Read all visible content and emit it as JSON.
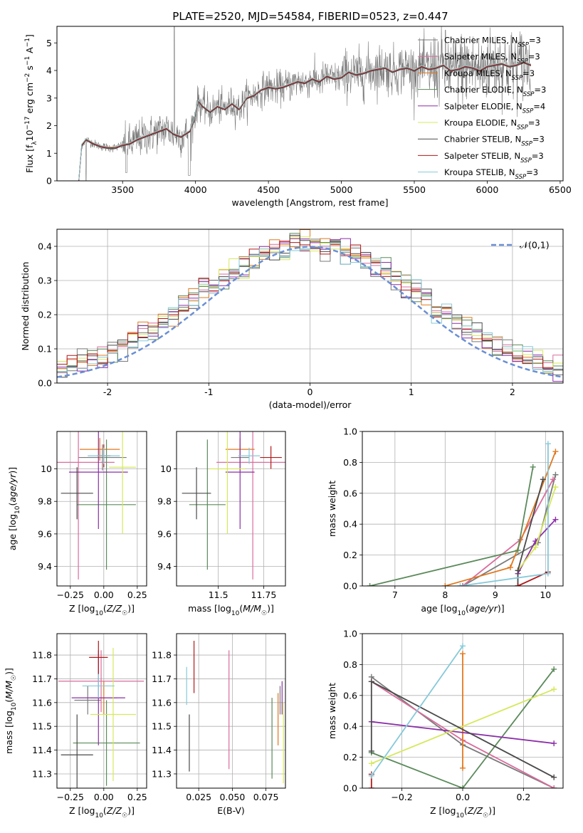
{
  "figure_title": "PLATE=2520, MJD=54584, FIBERID=0523, z=0.447",
  "series_colors": [
    "#7a7a7a",
    "#d96c9c",
    "#e0781e",
    "#5b8a5b",
    "#8b2fa8",
    "#d6e85c",
    "#4a4a4a",
    "#b01919",
    "#86c9d9"
  ],
  "chart_data": [
    {
      "id": "spectrum",
      "type": "line",
      "title": "PLATE=2520, MJD=54584, FIBERID=0523, z=0.447",
      "xlabel": "wavelength [Angstrom, rest frame]",
      "ylabel": "Flux [f_λ 10^-17 erg cm^-2 s^-1 A^-1]",
      "xlim": [
        3050,
        6520
      ],
      "ylim": [
        0,
        5.6
      ],
      "xticks": [
        3500,
        4000,
        4500,
        5000,
        5500,
        6000,
        6500
      ],
      "yticks": [
        0,
        1,
        2,
        3,
        4,
        5
      ],
      "grid": false,
      "legend_position": "top-right",
      "legend": [
        "Chabrier MILES, N_SSP=3",
        "Salpeter MILES, N_SSP=3",
        "Kroupa MILES, N_SSP=3",
        "Chabrier ELODIE, N_SSP=3",
        "Salpeter ELODIE, N_SSP=4",
        "Kroupa ELODIE, N_SSP=3",
        "Chabrier STELIB, N_SSP=3",
        "Salpeter STELIB, N_SSP=3",
        "Kroupa STELIB, N_SSP=3"
      ],
      "model_continuum": {
        "x": [
          3200,
          3220,
          3250,
          3300,
          3350,
          3400,
          3450,
          3500,
          3550,
          3600,
          3650,
          3700,
          3750,
          3800,
          3850,
          3900,
          3930,
          3960,
          3990,
          4000,
          4020,
          4050,
          4100,
          4150,
          4200,
          4250,
          4300,
          4350,
          4400,
          4450,
          4500,
          4550,
          4600,
          4650,
          4700,
          4750,
          4800,
          4850,
          4900,
          4950,
          5000,
          5050,
          5100,
          5150,
          5200,
          5250,
          5300,
          5350,
          5400,
          5450,
          5500,
          5550,
          5600,
          5650,
          5700,
          5750,
          5800,
          5850,
          5900,
          5950,
          6000,
          6050,
          6100,
          6150,
          6200,
          6250,
          6300
        ],
        "y": [
          0,
          1.3,
          1.5,
          1.35,
          1.25,
          1.2,
          1.2,
          1.3,
          1.35,
          1.5,
          1.6,
          1.7,
          1.8,
          1.9,
          1.7,
          1.6,
          1.7,
          1.8,
          2.2,
          2.5,
          2.9,
          2.7,
          2.5,
          2.7,
          2.6,
          2.8,
          2.6,
          3.0,
          3.1,
          3.3,
          3.4,
          3.35,
          3.4,
          3.5,
          3.6,
          3.55,
          3.7,
          3.6,
          3.8,
          3.7,
          3.75,
          3.95,
          3.85,
          3.9,
          4.0,
          4.05,
          4.1,
          3.95,
          4.05,
          4.1,
          4.0,
          4.15,
          4.05,
          4.1,
          4.2,
          4.0,
          4.05,
          4.15,
          4.1,
          4.0,
          4.15,
          4.2,
          4.25,
          4.15,
          4.2,
          4.3,
          4.2
        ]
      }
    },
    {
      "id": "residuals",
      "type": "step",
      "xlabel": "(data-model)/error",
      "ylabel": "Normed distribution",
      "xlim": [
        -2.5,
        2.5
      ],
      "ylim": [
        0,
        0.45
      ],
      "xticks": [
        -2,
        -1,
        0,
        1,
        2
      ],
      "yticks": [
        0.0,
        0.1,
        0.2,
        0.3,
        0.4
      ],
      "grid": true,
      "legend_position": "top-right",
      "legend": [
        "𝒩(0,1)"
      ],
      "bin_width": 0.1
    },
    {
      "id": "age-vs-Z",
      "type": "scatter-errorbar",
      "xlabel": "Z [log10(Z/Z☉)]",
      "ylabel": "age  [log10(age/yr)]",
      "xlim": [
        -0.35,
        0.32
      ],
      "ylim": [
        9.28,
        10.23
      ],
      "xticks": [
        -0.25,
        0.0,
        0.25
      ],
      "xtick_labels": [
        "−0.25",
        "0.00",
        "0.25"
      ],
      "yticks": [
        9.4,
        9.6,
        9.8,
        10.0
      ],
      "grid": true,
      "points": [
        {
          "x": -0.01,
          "y": 10.07,
          "xerr": 0.18,
          "yerr": 0.08
        },
        {
          "x": -0.19,
          "y": 10.04,
          "xerr": 0.27,
          "yerr": 0.72
        },
        {
          "x": -0.03,
          "y": 10.12,
          "xerr": 0.15,
          "yerr": 0.07
        },
        {
          "x": 0.02,
          "y": 9.78,
          "xerr": 0.22,
          "yerr": 0.4
        },
        {
          "x": -0.04,
          "y": 9.98,
          "xerr": 0.22,
          "yerr": 0.35
        },
        {
          "x": 0.14,
          "y": 10.01,
          "xerr": 0.1,
          "yerr": 0.41
        },
        {
          "x": -0.2,
          "y": 9.85,
          "xerr": 0.12,
          "yerr": 0.16
        },
        {
          "x": 0.0,
          "y": 10.08,
          "xerr": 0.05,
          "yerr": 0.07
        },
        {
          "x": 0.0,
          "y": 10.08,
          "xerr": 0.12,
          "yerr": 0.05
        }
      ]
    },
    {
      "id": "age-vs-mass",
      "type": "scatter-errorbar",
      "xlabel": "mass [log10(M/M☉)]",
      "ylabel": "",
      "xlim": [
        11.27,
        11.87
      ],
      "ylim": [
        9.28,
        10.23
      ],
      "xticks": [
        11.25,
        11.5,
        11.75
      ],
      "yticks": [
        9.4,
        9.6,
        9.8,
        10.0
      ],
      "grid": true,
      "points": [
        {
          "x": 11.62,
          "y": 10.07,
          "xerr": 0.05,
          "yerr": 0.08
        },
        {
          "x": 11.69,
          "y": 10.04,
          "xerr": 0.2,
          "yerr": 0.72
        },
        {
          "x": 11.62,
          "y": 10.12,
          "xerr": 0.08,
          "yerr": 0.07
        },
        {
          "x": 11.44,
          "y": 9.78,
          "xerr": 0.1,
          "yerr": 0.4
        },
        {
          "x": 11.62,
          "y": 9.98,
          "xerr": 0.08,
          "yerr": 0.35
        },
        {
          "x": 11.55,
          "y": 10.0,
          "xerr": 0.1,
          "yerr": 0.4
        },
        {
          "x": 11.38,
          "y": 9.85,
          "xerr": 0.08,
          "yerr": 0.16
        },
        {
          "x": 11.79,
          "y": 10.07,
          "xerr": 0.06,
          "yerr": 0.07
        },
        {
          "x": 11.67,
          "y": 10.08,
          "xerr": 0.06,
          "yerr": 0.05
        }
      ]
    },
    {
      "id": "massweight-vs-age",
      "type": "line",
      "xlabel": "age  [log10(age/yr)]",
      "ylabel": "mass weight",
      "xlim": [
        6.35,
        10.35
      ],
      "ylim": [
        0.0,
        1.0
      ],
      "xticks": [
        7,
        8,
        9,
        10
      ],
      "yticks": [
        0.0,
        0.2,
        0.4,
        0.6,
        0.8,
        1.0
      ],
      "grid": true,
      "series": [
        {
          "x": [
            8.35,
            9.85,
            10.2
          ],
          "y": [
            0.0,
            0.28,
            0.72
          ]
        },
        {
          "x": [
            8.35,
            9.5,
            10.15
          ],
          "y": [
            0.0,
            0.3,
            0.69
          ]
        },
        {
          "x": [
            8.0,
            9.3,
            10.2
          ],
          "y": [
            0.0,
            0.12,
            0.87
          ]
        },
        {
          "x": [
            6.5,
            9.45,
            9.75
          ],
          "y": [
            0.0,
            0.23,
            0.77
          ]
        },
        {
          "x": [
            9.45,
            9.8,
            10.2
          ],
          "y": [
            0.08,
            0.29,
            0.43
          ]
        },
        {
          "x": [
            9.45,
            9.8,
            10.2
          ],
          "y": [
            0.1,
            0.25,
            0.64
          ]
        },
        {
          "x": [
            9.45,
            9.45,
            9.95
          ],
          "y": [
            0.0,
            0.1,
            0.69
          ]
        },
        {
          "x": [
            9.45,
            10.05
          ],
          "y": [
            0.0,
            0.09
          ]
        },
        {
          "x": [
            8.3,
            10.05,
            10.05
          ],
          "y": [
            0.0,
            0.08,
            0.92
          ]
        }
      ]
    },
    {
      "id": "mass-vs-Z",
      "type": "scatter-errorbar",
      "xlabel": "Z [log10(Z/Z☉)]",
      "ylabel": "mass [log10(M/M☉)]",
      "xlim": [
        -0.35,
        0.32
      ],
      "ylim": [
        11.24,
        11.89
      ],
      "xticks": [
        -0.25,
        0.0,
        0.25
      ],
      "xtick_labels": [
        "−0.25",
        "0.00",
        "0.25"
      ],
      "yticks": [
        11.3,
        11.4,
        11.5,
        11.6,
        11.7,
        11.8
      ],
      "grid": true,
      "points": [
        {
          "x": -0.12,
          "y": 11.61,
          "xerr": 0.1,
          "yerr": 0.06
        },
        {
          "x": -0.02,
          "y": 11.69,
          "xerr": 0.32,
          "yerr": 0.13
        },
        {
          "x": 0.0,
          "y": 11.62,
          "xerr": 0.1,
          "yerr": 0.07
        },
        {
          "x": 0.02,
          "y": 11.43,
          "xerr": 0.25,
          "yerr": 0.18
        },
        {
          "x": -0.04,
          "y": 11.62,
          "xerr": 0.2,
          "yerr": 0.2
        },
        {
          "x": 0.07,
          "y": 11.55,
          "xerr": 0.17,
          "yerr": 0.28
        },
        {
          "x": -0.2,
          "y": 11.38,
          "xerr": 0.12,
          "yerr": 0.17
        },
        {
          "x": -0.04,
          "y": 11.79,
          "xerr": 0.07,
          "yerr": 0.07
        },
        {
          "x": -0.04,
          "y": 11.67,
          "xerr": 0.12,
          "yerr": 0.05
        }
      ]
    },
    {
      "id": "mass-vs-ebv",
      "type": "scatter-errorbar",
      "xlabel": "E(B-V)",
      "ylabel": "",
      "xlim": [
        0.0085,
        0.0895
      ],
      "ylim": [
        11.24,
        11.89
      ],
      "xticks": [
        0.025,
        0.05,
        0.075
      ],
      "xtick_labels": [
        "0.025",
        "0.050",
        "0.075"
      ],
      "yticks": [
        11.3,
        11.4,
        11.5,
        11.6,
        11.7,
        11.8
      ],
      "grid": true,
      "points": [
        {
          "x": 0.0855,
          "y": 11.61,
          "xerr": 0,
          "yerr": 0.06
        },
        {
          "x": 0.0475,
          "y": 11.57,
          "xerr": 0,
          "yerr": 0.25
        },
        {
          "x": 0.084,
          "y": 11.53,
          "xerr": 0,
          "yerr": 0.11
        },
        {
          "x": 0.0795,
          "y": 11.45,
          "xerr": 0,
          "yerr": 0.17
        },
        {
          "x": 0.087,
          "y": 11.62,
          "xerr": 0,
          "yerr": 0.07
        },
        {
          "x": 0.088,
          "y": 11.43,
          "xerr": 0,
          "yerr": 0.17
        },
        {
          "x": 0.018,
          "y": 11.43,
          "xerr": 0,
          "yerr": 0.12
        },
        {
          "x": 0.0215,
          "y": 11.75,
          "xerr": 0,
          "yerr": 0.11
        },
        {
          "x": 0.016,
          "y": 11.67,
          "xerr": 0,
          "yerr": 0.08
        }
      ]
    },
    {
      "id": "massweight-vs-Z",
      "type": "line",
      "xlabel": "Z [log10(Z/Z☉)]",
      "ylabel": "mass weight",
      "xlim": [
        -0.33,
        0.33
      ],
      "ylim": [
        0.0,
        1.0
      ],
      "xticks": [
        -0.2,
        0.0,
        0.2
      ],
      "xtick_labels": [
        "−0.2",
        "0.0",
        "0.2"
      ],
      "yticks": [
        0.0,
        0.2,
        0.4,
        0.6,
        0.8,
        1.0
      ],
      "grid": true,
      "series": [
        {
          "x": [
            -0.3,
            0.0,
            0.3
          ],
          "y": [
            0.72,
            0.28,
            0.0
          ]
        },
        {
          "x": [
            -0.3,
            0.0,
            0.3
          ],
          "y": [
            0.69,
            0.31,
            0.0
          ]
        },
        {
          "x": [
            0.0,
            0.0
          ],
          "y": [
            0.87,
            0.13
          ]
        },
        {
          "x": [
            -0.3,
            0.0,
            0.3
          ],
          "y": [
            0.23,
            0.0,
            0.77
          ]
        },
        {
          "x": [
            -0.3,
            0.3
          ],
          "y": [
            0.43,
            0.29
          ]
        },
        {
          "x": [
            -0.3,
            0.3
          ],
          "y": [
            0.16,
            0.64
          ]
        },
        {
          "x": [
            -0.3,
            -0.3,
            0.3
          ],
          "y": [
            0.24,
            0.69,
            0.07
          ]
        },
        {
          "x": [
            -0.3,
            -0.3
          ],
          "y": [
            0.0,
            0.09
          ]
        },
        {
          "x": [
            -0.3,
            0.0
          ],
          "y": [
            0.08,
            0.92
          ]
        }
      ]
    }
  ]
}
